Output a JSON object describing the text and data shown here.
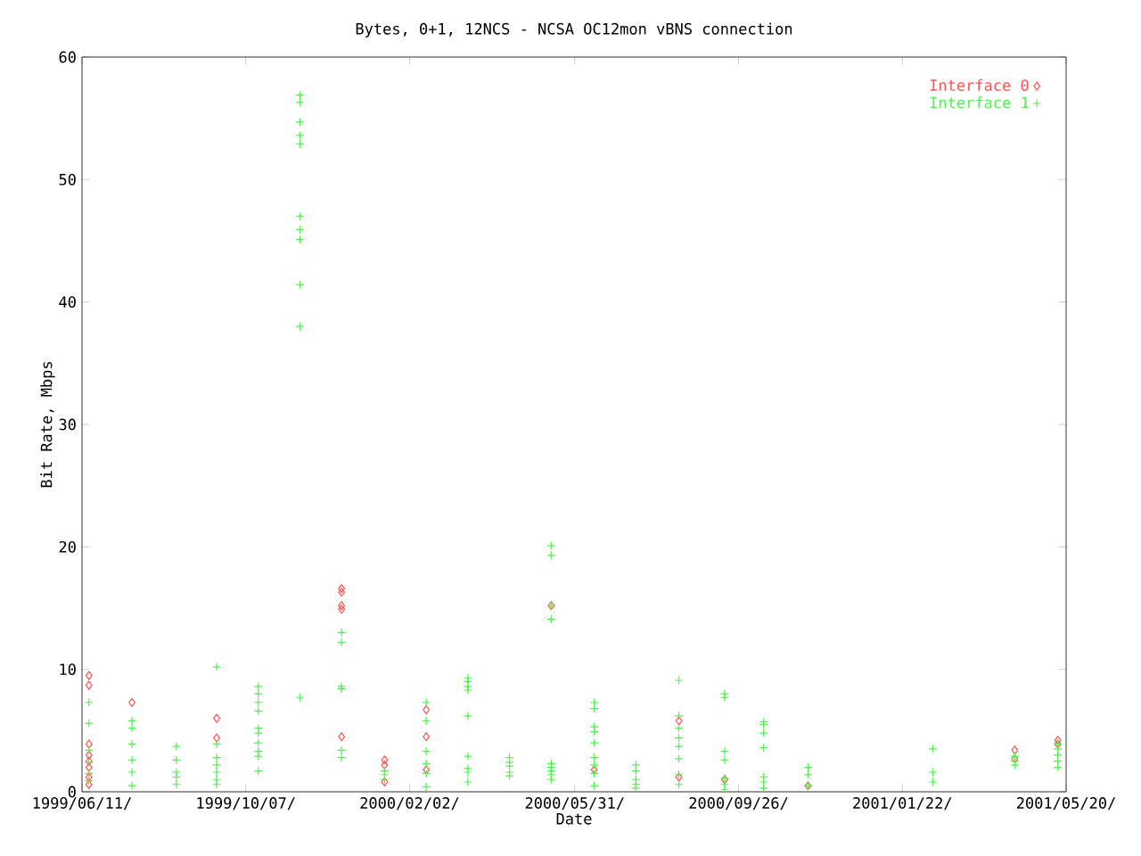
{
  "chart_data": {
    "type": "scatter",
    "title": "Bytes, 0+1, 12NCS - NCSA OC12mon vBNS connection",
    "xlabel": "Date",
    "ylabel": "Bit Rate, Mbps",
    "xlim": [
      "1999-06-11",
      "2001-05-20"
    ],
    "xticks": [
      {
        "value": "1999-06-11",
        "label": "1999/06/11/"
      },
      {
        "value": "1999-10-07",
        "label": "1999/10/07/"
      },
      {
        "value": "2000-02-02",
        "label": "2000/02/02/"
      },
      {
        "value": "2000-05-31",
        "label": "2000/05/31/"
      },
      {
        "value": "2000-09-26",
        "label": "2000/09/26/"
      },
      {
        "value": "2001-01-22",
        "label": "2001/01/22/"
      },
      {
        "value": "2001-05-20",
        "label": "2001/05/20/"
      }
    ],
    "ylim": [
      0,
      60
    ],
    "yticks": [
      0,
      10,
      20,
      30,
      40,
      50,
      60
    ],
    "legend": "top right",
    "series": [
      {
        "name": "Interface 0",
        "color": "#ff5050",
        "marker": "diamond",
        "x": [
          "1999-06-16",
          "1999-06-16",
          "1999-06-16",
          "1999-06-16",
          "1999-06-16",
          "1999-06-16",
          "1999-06-16",
          "1999-06-16",
          "1999-07-17",
          "1999-09-16",
          "1999-09-16",
          "1999-12-15",
          "1999-12-15",
          "1999-12-15",
          "1999-12-15",
          "1999-12-15",
          "2000-01-15",
          "2000-01-15",
          "2000-01-15",
          "2000-02-14",
          "2000-02-14",
          "2000-02-14",
          "2000-05-14",
          "2000-06-14",
          "2000-08-14",
          "2000-08-14",
          "2000-09-16",
          "2000-11-15",
          "2001-04-13",
          "2001-04-13",
          "2001-05-14",
          "2001-05-14"
        ],
        "values": [
          9.5,
          8.7,
          3.9,
          3.0,
          2.5,
          2.0,
          1.2,
          0.6,
          7.3,
          6.0,
          4.4,
          16.6,
          16.3,
          15.2,
          14.9,
          4.5,
          2.6,
          2.2,
          0.8,
          6.7,
          4.5,
          1.8,
          15.2,
          1.8,
          5.8,
          1.2,
          1.0,
          0.5,
          3.4,
          2.7,
          4.2,
          3.9
        ]
      },
      {
        "name": "Interface 1",
        "color": "#50f050",
        "marker": "cross",
        "x": [
          "1999-06-16",
          "1999-06-16",
          "1999-06-16",
          "1999-06-16",
          "1999-06-16",
          "1999-06-16",
          "1999-07-17",
          "1999-07-17",
          "1999-07-17",
          "1999-07-17",
          "1999-07-17",
          "1999-07-17",
          "1999-08-18",
          "1999-08-18",
          "1999-08-18",
          "1999-08-18",
          "1999-08-18",
          "1999-09-16",
          "1999-09-16",
          "1999-09-16",
          "1999-09-16",
          "1999-09-16",
          "1999-09-16",
          "1999-09-16",
          "1999-10-16",
          "1999-10-16",
          "1999-10-16",
          "1999-10-16",
          "1999-10-16",
          "1999-10-16",
          "1999-10-16",
          "1999-10-16",
          "1999-10-16",
          "1999-10-16",
          "1999-11-15",
          "1999-11-15",
          "1999-11-15",
          "1999-11-15",
          "1999-11-15",
          "1999-11-15",
          "1999-11-15",
          "1999-11-15",
          "1999-11-15",
          "1999-11-15",
          "1999-11-15",
          "1999-12-15",
          "1999-12-15",
          "1999-12-15",
          "1999-12-15",
          "1999-12-15",
          "1999-12-15",
          "2000-01-15",
          "2000-01-15",
          "2000-01-15",
          "2000-02-14",
          "2000-02-14",
          "2000-02-14",
          "2000-02-14",
          "2000-02-14",
          "2000-02-14",
          "2000-03-15",
          "2000-03-15",
          "2000-03-15",
          "2000-03-15",
          "2000-03-15",
          "2000-03-15",
          "2000-03-15",
          "2000-03-15",
          "2000-03-15",
          "2000-04-14",
          "2000-04-14",
          "2000-04-14",
          "2000-04-14",
          "2000-04-14",
          "2000-05-14",
          "2000-05-14",
          "2000-05-14",
          "2000-05-14",
          "2000-05-14",
          "2000-05-14",
          "2000-05-14",
          "2000-05-14",
          "2000-05-14",
          "2000-06-14",
          "2000-06-14",
          "2000-06-14",
          "2000-06-14",
          "2000-06-14",
          "2000-06-14",
          "2000-06-14",
          "2000-06-14",
          "2000-06-14",
          "2000-07-14",
          "2000-07-14",
          "2000-07-14",
          "2000-07-14",
          "2000-07-14",
          "2000-08-14",
          "2000-08-14",
          "2000-08-14",
          "2000-08-14",
          "2000-08-14",
          "2000-08-14",
          "2000-08-14",
          "2000-08-14",
          "2000-09-16",
          "2000-09-16",
          "2000-09-16",
          "2000-09-16",
          "2000-09-16",
          "2000-09-16",
          "2000-09-16",
          "2000-10-14",
          "2000-10-14",
          "2000-10-14",
          "2000-10-14",
          "2000-10-14",
          "2000-10-14",
          "2000-10-14",
          "2000-11-15",
          "2000-11-15",
          "2000-11-15",
          "2001-02-13",
          "2001-02-13",
          "2001-02-13",
          "2001-04-13",
          "2001-04-13",
          "2001-04-13",
          "2001-05-14",
          "2001-05-14",
          "2001-05-14",
          "2001-05-14",
          "2001-05-14"
        ],
        "values": [
          7.3,
          5.6,
          3.4,
          2.4,
          1.5,
          0.9,
          5.8,
          5.2,
          3.9,
          2.6,
          1.6,
          0.5,
          3.7,
          2.6,
          1.6,
          1.2,
          0.6,
          10.2,
          3.9,
          2.8,
          2.2,
          1.6,
          1.0,
          0.6,
          8.6,
          8.0,
          7.3,
          6.6,
          5.2,
          4.8,
          4.0,
          3.3,
          2.9,
          1.7,
          56.9,
          56.3,
          54.7,
          53.6,
          52.9,
          47.0,
          45.9,
          45.1,
          41.4,
          38.0,
          7.7,
          13.0,
          12.2,
          8.6,
          8.4,
          3.4,
          2.8,
          1.7,
          1.4,
          1.0,
          7.3,
          5.8,
          3.3,
          2.3,
          1.5,
          0.4,
          9.3,
          9.0,
          8.6,
          8.3,
          6.2,
          2.9,
          1.9,
          1.6,
          0.8,
          2.8,
          2.4,
          2.1,
          1.6,
          1.3,
          20.1,
          19.3,
          15.2,
          14.1,
          2.3,
          2.0,
          1.7,
          1.4,
          1.0,
          7.3,
          6.8,
          5.3,
          4.9,
          4.0,
          2.8,
          2.2,
          1.5,
          0.5,
          2.2,
          1.7,
          1.0,
          0.6,
          0.3,
          9.1,
          6.2,
          5.2,
          4.4,
          3.7,
          2.7,
          1.4,
          0.6,
          8.0,
          7.7,
          3.3,
          2.6,
          1.1,
          0.6,
          0.2,
          5.7,
          5.5,
          4.8,
          3.6,
          1.2,
          0.8,
          0.3,
          2.0,
          1.4,
          0.5,
          3.5,
          1.6,
          0.8,
          2.9,
          2.5,
          2.2,
          3.9,
          3.5,
          3.0,
          2.5,
          2.0
        ]
      }
    ]
  }
}
